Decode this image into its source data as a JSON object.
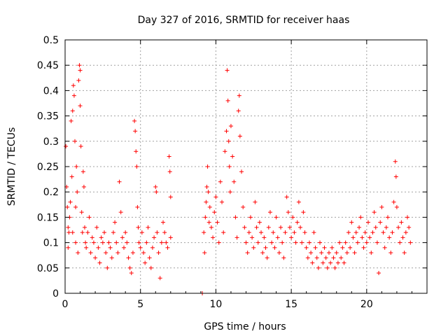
{
  "chart_data": {
    "type": "scatter",
    "title": "Day 327 of 2016, SRMTID for receiver haas",
    "xlabel": "GPS time / hours",
    "ylabel": "SRMTID / TECUs",
    "xlim": [
      0,
      24
    ],
    "ylim": [
      0,
      0.5
    ],
    "xticks": [
      0,
      5,
      10,
      15,
      20
    ],
    "yticks": [
      0,
      0.05,
      0.1,
      0.15,
      0.2,
      0.25,
      0.3,
      0.35,
      0.4,
      0.45,
      0.5
    ],
    "xtick_labels": [
      "0",
      "5",
      "10",
      "15",
      "20"
    ],
    "ytick_labels": [
      "0",
      "0.05",
      "0.1",
      "0.15",
      "0.2",
      "0.25",
      "0.3",
      "0.35",
      "0.4",
      "0.45",
      "0.5"
    ],
    "grid": true,
    "marker": "+",
    "color": "#ff0000",
    "series": [
      {
        "name": "SRMTID",
        "points": [
          [
            0.05,
            0.29
          ],
          [
            0.1,
            0.21
          ],
          [
            0.15,
            0.17
          ],
          [
            0.2,
            0.13
          ],
          [
            0.2,
            0.09
          ],
          [
            0.25,
            0.12
          ],
          [
            0.3,
            0.15
          ],
          [
            0.35,
            0.18
          ],
          [
            0.4,
            0.34
          ],
          [
            0.45,
            0.23
          ],
          [
            0.5,
            0.36
          ],
          [
            0.5,
            0.12
          ],
          [
            0.55,
            0.41
          ],
          [
            0.6,
            0.39
          ],
          [
            0.65,
            0.3
          ],
          [
            0.7,
            0.17
          ],
          [
            0.7,
            0.1
          ],
          [
            0.75,
            0.25
          ],
          [
            0.8,
            0.2
          ],
          [
            0.85,
            0.08
          ],
          [
            0.9,
            0.42
          ],
          [
            0.95,
            0.45
          ],
          [
            1.0,
            0.44
          ],
          [
            1.0,
            0.37
          ],
          [
            1.05,
            0.29
          ],
          [
            1.1,
            0.16
          ],
          [
            1.15,
            0.12
          ],
          [
            1.2,
            0.24
          ],
          [
            1.25,
            0.21
          ],
          [
            1.3,
            0.13
          ],
          [
            1.35,
            0.1
          ],
          [
            1.4,
            0.09
          ],
          [
            1.5,
            0.12
          ],
          [
            1.6,
            0.15
          ],
          [
            1.7,
            0.08
          ],
          [
            1.8,
            0.11
          ],
          [
            1.9,
            0.1
          ],
          [
            2.0,
            0.07
          ],
          [
            2.1,
            0.13
          ],
          [
            2.2,
            0.09
          ],
          [
            2.3,
            0.06
          ],
          [
            2.4,
            0.11
          ],
          [
            2.5,
            0.1
          ],
          [
            2.6,
            0.12
          ],
          [
            2.7,
            0.08
          ],
          [
            2.8,
            0.05
          ],
          [
            2.9,
            0.1
          ],
          [
            3.0,
            0.09
          ],
          [
            3.1,
            0.07
          ],
          [
            3.2,
            0.12
          ],
          [
            3.3,
            0.14
          ],
          [
            3.4,
            0.1
          ],
          [
            3.5,
            0.08
          ],
          [
            3.6,
            0.22
          ],
          [
            3.7,
            0.16
          ],
          [
            3.8,
            0.11
          ],
          [
            3.9,
            0.09
          ],
          [
            4.0,
            0.12
          ],
          [
            4.1,
            0.1
          ],
          [
            4.2,
            0.07
          ],
          [
            4.3,
            0.05
          ],
          [
            4.4,
            0.04
          ],
          [
            4.5,
            0.08
          ],
          [
            4.6,
            0.34
          ],
          [
            4.65,
            0.32
          ],
          [
            4.7,
            0.28
          ],
          [
            4.75,
            0.25
          ],
          [
            4.8,
            0.17
          ],
          [
            4.85,
            0.13
          ],
          [
            4.9,
            0.1
          ],
          [
            5.0,
            0.09
          ],
          [
            5.1,
            0.12
          ],
          [
            5.2,
            0.08
          ],
          [
            5.3,
            0.06
          ],
          [
            5.4,
            0.1
          ],
          [
            5.5,
            0.13
          ],
          [
            5.6,
            0.07
          ],
          [
            5.7,
            0.05
          ],
          [
            5.8,
            0.09
          ],
          [
            5.9,
            0.11
          ],
          [
            6.0,
            0.21
          ],
          [
            6.05,
            0.2
          ],
          [
            6.1,
            0.12
          ],
          [
            6.2,
            0.08
          ],
          [
            6.3,
            0.03
          ],
          [
            6.4,
            0.1
          ],
          [
            6.5,
            0.14
          ],
          [
            6.6,
            0.12
          ],
          [
            6.7,
            0.1
          ],
          [
            6.8,
            0.09
          ],
          [
            6.9,
            0.27
          ],
          [
            6.95,
            0.24
          ],
          [
            7.0,
            0.19
          ],
          [
            7.0,
            0.11
          ],
          [
            9.1,
            0.0
          ],
          [
            9.2,
            0.12
          ],
          [
            9.25,
            0.08
          ],
          [
            9.3,
            0.15
          ],
          [
            9.35,
            0.18
          ],
          [
            9.4,
            0.21
          ],
          [
            9.45,
            0.25
          ],
          [
            9.5,
            0.2
          ],
          [
            9.55,
            0.14
          ],
          [
            9.6,
            0.17
          ],
          [
            9.7,
            0.13
          ],
          [
            9.8,
            0.11
          ],
          [
            9.9,
            0.16
          ],
          [
            10.0,
            0.19
          ],
          [
            10.1,
            0.14
          ],
          [
            10.2,
            0.1
          ],
          [
            10.3,
            0.22
          ],
          [
            10.4,
            0.18
          ],
          [
            10.5,
            0.12
          ],
          [
            10.6,
            0.28
          ],
          [
            10.7,
            0.32
          ],
          [
            10.75,
            0.44
          ],
          [
            10.8,
            0.38
          ],
          [
            10.85,
            0.3
          ],
          [
            10.9,
            0.25
          ],
          [
            10.95,
            0.2
          ],
          [
            11.0,
            0.33
          ],
          [
            11.1,
            0.27
          ],
          [
            11.2,
            0.22
          ],
          [
            11.3,
            0.15
          ],
          [
            11.4,
            0.11
          ],
          [
            11.5,
            0.36
          ],
          [
            11.55,
            0.39
          ],
          [
            11.6,
            0.31
          ],
          [
            11.7,
            0.24
          ],
          [
            11.8,
            0.17
          ],
          [
            11.9,
            0.13
          ],
          [
            12.0,
            0.1
          ],
          [
            12.1,
            0.08
          ],
          [
            12.2,
            0.12
          ],
          [
            12.3,
            0.15
          ],
          [
            12.4,
            0.11
          ],
          [
            12.5,
            0.09
          ],
          [
            12.6,
            0.18
          ],
          [
            12.7,
            0.13
          ],
          [
            12.8,
            0.1
          ],
          [
            12.9,
            0.14
          ],
          [
            13.0,
            0.12
          ],
          [
            13.1,
            0.08
          ],
          [
            13.2,
            0.11
          ],
          [
            13.3,
            0.09
          ],
          [
            13.4,
            0.07
          ],
          [
            13.5,
            0.13
          ],
          [
            13.6,
            0.16
          ],
          [
            13.7,
            0.1
          ],
          [
            13.8,
            0.12
          ],
          [
            13.9,
            0.09
          ],
          [
            14.0,
            0.15
          ],
          [
            14.1,
            0.11
          ],
          [
            14.2,
            0.08
          ],
          [
            14.3,
            0.13
          ],
          [
            14.4,
            0.1
          ],
          [
            14.5,
            0.07
          ],
          [
            14.6,
            0.12
          ],
          [
            14.7,
            0.19
          ],
          [
            14.8,
            0.16
          ],
          [
            14.9,
            0.13
          ],
          [
            15.0,
            0.11
          ],
          [
            15.1,
            0.15
          ],
          [
            15.2,
            0.12
          ],
          [
            15.3,
            0.1
          ],
          [
            15.4,
            0.14
          ],
          [
            15.5,
            0.18
          ],
          [
            15.6,
            0.13
          ],
          [
            15.7,
            0.1
          ],
          [
            15.8,
            0.16
          ],
          [
            15.9,
            0.12
          ],
          [
            16.0,
            0.09
          ],
          [
            16.1,
            0.07
          ],
          [
            16.2,
            0.1
          ],
          [
            16.3,
            0.08
          ],
          [
            16.4,
            0.06
          ],
          [
            16.5,
            0.12
          ],
          [
            16.6,
            0.09
          ],
          [
            16.7,
            0.07
          ],
          [
            16.8,
            0.05
          ],
          [
            16.9,
            0.1
          ],
          [
            17.0,
            0.08
          ],
          [
            17.1,
            0.06
          ],
          [
            17.2,
            0.09
          ],
          [
            17.3,
            0.07
          ],
          [
            17.4,
            0.05
          ],
          [
            17.5,
            0.08
          ],
          [
            17.6,
            0.06
          ],
          [
            17.7,
            0.09
          ],
          [
            17.8,
            0.07
          ],
          [
            17.9,
            0.05
          ],
          [
            18.0,
            0.08
          ],
          [
            18.1,
            0.06
          ],
          [
            18.2,
            0.1
          ],
          [
            18.3,
            0.07
          ],
          [
            18.4,
            0.09
          ],
          [
            18.5,
            0.06
          ],
          [
            18.6,
            0.1
          ],
          [
            18.7,
            0.08
          ],
          [
            18.8,
            0.12
          ],
          [
            18.9,
            0.09
          ],
          [
            19.0,
            0.14
          ],
          [
            19.1,
            0.11
          ],
          [
            19.2,
            0.08
          ],
          [
            19.3,
            0.12
          ],
          [
            19.4,
            0.1
          ],
          [
            19.5,
            0.13
          ],
          [
            19.6,
            0.15
          ],
          [
            19.7,
            0.11
          ],
          [
            19.8,
            0.09
          ],
          [
            19.9,
            0.12
          ],
          [
            20.0,
            0.1
          ],
          [
            20.1,
            0.14
          ],
          [
            20.2,
            0.11
          ],
          [
            20.3,
            0.08
          ],
          [
            20.4,
            0.12
          ],
          [
            20.5,
            0.16
          ],
          [
            20.6,
            0.13
          ],
          [
            20.7,
            0.1
          ],
          [
            20.8,
            0.04
          ],
          [
            20.9,
            0.14
          ],
          [
            21.0,
            0.17
          ],
          [
            21.1,
            0.12
          ],
          [
            21.2,
            0.09
          ],
          [
            21.3,
            0.13
          ],
          [
            21.4,
            0.15
          ],
          [
            21.5,
            0.11
          ],
          [
            21.6,
            0.08
          ],
          [
            21.7,
            0.12
          ],
          [
            21.8,
            0.18
          ],
          [
            21.9,
            0.26
          ],
          [
            21.95,
            0.23
          ],
          [
            22.0,
            0.17
          ],
          [
            22.1,
            0.13
          ],
          [
            22.2,
            0.1
          ],
          [
            22.3,
            0.14
          ],
          [
            22.4,
            0.11
          ],
          [
            22.5,
            0.08
          ],
          [
            22.6,
            0.12
          ],
          [
            22.7,
            0.15
          ],
          [
            22.8,
            0.13
          ],
          [
            22.9,
            0.1
          ]
        ]
      }
    ]
  }
}
